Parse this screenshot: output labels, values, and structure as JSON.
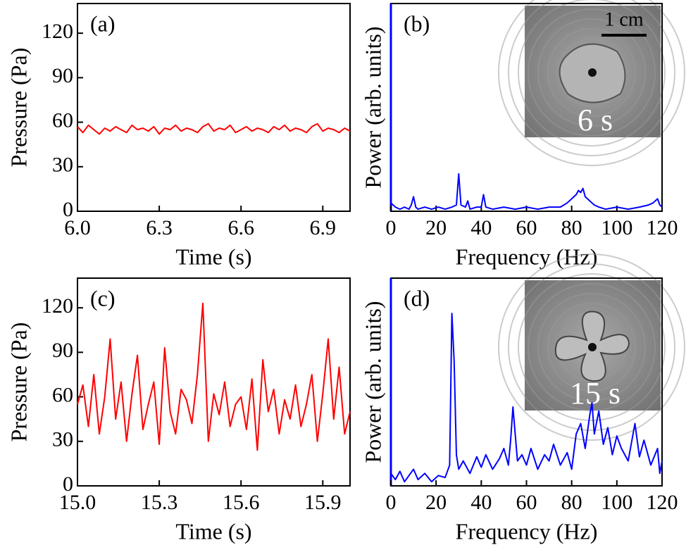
{
  "chart_data": [
    {
      "type": "line",
      "panel_label": "(a)",
      "xlabel": "Time (s)",
      "ylabel": "Pressure (Pa)",
      "xlim": [
        6.0,
        7.0
      ],
      "xticks": [
        {
          "value": 6.0,
          "label": "6.0"
        },
        6.3,
        6.6,
        6.9
      ],
      "ylim": [
        0,
        140
      ],
      "yticks": [
        0,
        30,
        60,
        90,
        120
      ],
      "color": "#ff0000",
      "x": [
        6.0,
        6.02,
        6.04,
        6.06,
        6.08,
        6.1,
        6.12,
        6.14,
        6.16,
        6.18,
        6.2,
        6.22,
        6.24,
        6.26,
        6.28,
        6.3,
        6.32,
        6.34,
        6.36,
        6.38,
        6.4,
        6.42,
        6.44,
        6.46,
        6.48,
        6.5,
        6.52,
        6.54,
        6.56,
        6.58,
        6.6,
        6.62,
        6.64,
        6.66,
        6.68,
        6.7,
        6.72,
        6.74,
        6.76,
        6.78,
        6.8,
        6.82,
        6.84,
        6.86,
        6.88,
        6.9,
        6.92,
        6.94,
        6.96,
        6.98,
        7.0
      ],
      "values": [
        57,
        53,
        58,
        55,
        52,
        56,
        54,
        57,
        55,
        53,
        58,
        55,
        56,
        54,
        57,
        52,
        56,
        55,
        58,
        54,
        56,
        55,
        53,
        57,
        59,
        54,
        56,
        55,
        58,
        53,
        55,
        57,
        54,
        56,
        55,
        53,
        57,
        55,
        58,
        54,
        56,
        55,
        53,
        57,
        59,
        54,
        56,
        55,
        53,
        56,
        54
      ]
    },
    {
      "type": "line",
      "panel_label": "(b)",
      "xlabel": "Frequency (Hz)",
      "ylabel": "Power (arb. units)",
      "xlim": [
        0,
        120
      ],
      "xticks": [
        0,
        20,
        40,
        60,
        80,
        100,
        120
      ],
      "ylim": [
        0,
        100
      ],
      "color": "#0000ff",
      "inset": {
        "scale_label": "1 cm",
        "time_label": "6 s"
      },
      "x": [
        0,
        2,
        4,
        6,
        8,
        9,
        10,
        11,
        12,
        15,
        18,
        21,
        24,
        27,
        29,
        30,
        31,
        33,
        34,
        35,
        38,
        40,
        41,
        42,
        45,
        50,
        55,
        60,
        65,
        70,
        75,
        78,
        80,
        82,
        83,
        84,
        85,
        86,
        88,
        90,
        92,
        95,
        100,
        105,
        110,
        114,
        116,
        118,
        119,
        120
      ],
      "values": [
        4,
        2,
        1,
        2,
        1,
        3,
        7,
        2,
        1,
        2,
        1,
        2,
        1,
        2,
        3,
        18,
        3,
        2,
        5,
        1,
        2,
        2,
        8,
        2,
        1,
        2,
        1,
        2,
        1,
        2,
        2,
        4,
        6,
        8,
        10,
        9,
        11,
        7,
        5,
        3,
        2,
        1,
        2,
        1,
        2,
        3,
        4,
        6,
        3,
        2
      ]
    },
    {
      "type": "line",
      "panel_label": "(c)",
      "xlabel": "Time (s)",
      "ylabel": "Pressure (Pa)",
      "xlim": [
        15.0,
        16.0
      ],
      "xticks": [
        {
          "value": 15.0,
          "label": "15.0"
        },
        15.3,
        15.6,
        15.9
      ],
      "ylim": [
        0,
        140
      ],
      "yticks": [
        0,
        30,
        60,
        90,
        120
      ],
      "color": "#ff0000",
      "x": [
        15.0,
        15.02,
        15.04,
        15.06,
        15.08,
        15.1,
        15.12,
        15.14,
        15.16,
        15.18,
        15.2,
        15.22,
        15.24,
        15.26,
        15.28,
        15.3,
        15.32,
        15.34,
        15.36,
        15.38,
        15.4,
        15.42,
        15.44,
        15.46,
        15.48,
        15.5,
        15.52,
        15.54,
        15.56,
        15.58,
        15.6,
        15.62,
        15.64,
        15.66,
        15.68,
        15.7,
        15.72,
        15.74,
        15.76,
        15.78,
        15.8,
        15.82,
        15.84,
        15.86,
        15.88,
        15.9,
        15.92,
        15.94,
        15.96,
        15.98,
        16.0
      ],
      "values": [
        55,
        68,
        40,
        75,
        35,
        60,
        99,
        45,
        70,
        30,
        62,
        88,
        38,
        55,
        70,
        28,
        93,
        50,
        35,
        65,
        58,
        42,
        75,
        123,
        30,
        62,
        48,
        70,
        40,
        55,
        60,
        38,
        72,
        24,
        85,
        50,
        65,
        35,
        58,
        45,
        68,
        40,
        55,
        75,
        30,
        62,
        99,
        45,
        80,
        35,
        50
      ]
    },
    {
      "type": "line",
      "panel_label": "(d)",
      "xlabel": "Frequency (Hz)",
      "ylabel": "Power (arb. units)",
      "xlim": [
        0,
        120
      ],
      "xticks": [
        0,
        20,
        40,
        60,
        80,
        100,
        120
      ],
      "ylim": [
        0,
        100
      ],
      "color": "#0000ff",
      "inset": {
        "time_label": "15 s"
      },
      "x": [
        0,
        2,
        4,
        6,
        8,
        10,
        12,
        15,
        18,
        21,
        24,
        26,
        27,
        28,
        29,
        30,
        32,
        35,
        38,
        40,
        42,
        45,
        48,
        50,
        52,
        53,
        54,
        55,
        56,
        58,
        60,
        62,
        65,
        68,
        70,
        72,
        75,
        78,
        80,
        82,
        84,
        86,
        88,
        89,
        90,
        92,
        94,
        96,
        98,
        100,
        102,
        105,
        108,
        110,
        112,
        115,
        118,
        119,
        120
      ],
      "values": [
        6,
        3,
        7,
        2,
        5,
        8,
        3,
        6,
        2,
        5,
        4,
        10,
        83,
        60,
        15,
        8,
        12,
        6,
        14,
        9,
        15,
        8,
        13,
        18,
        10,
        22,
        38,
        25,
        12,
        15,
        10,
        18,
        8,
        15,
        12,
        20,
        10,
        16,
        8,
        25,
        30,
        18,
        34,
        40,
        25,
        36,
        20,
        28,
        15,
        24,
        18,
        12,
        30,
        14,
        22,
        10,
        18,
        6,
        12
      ]
    }
  ]
}
